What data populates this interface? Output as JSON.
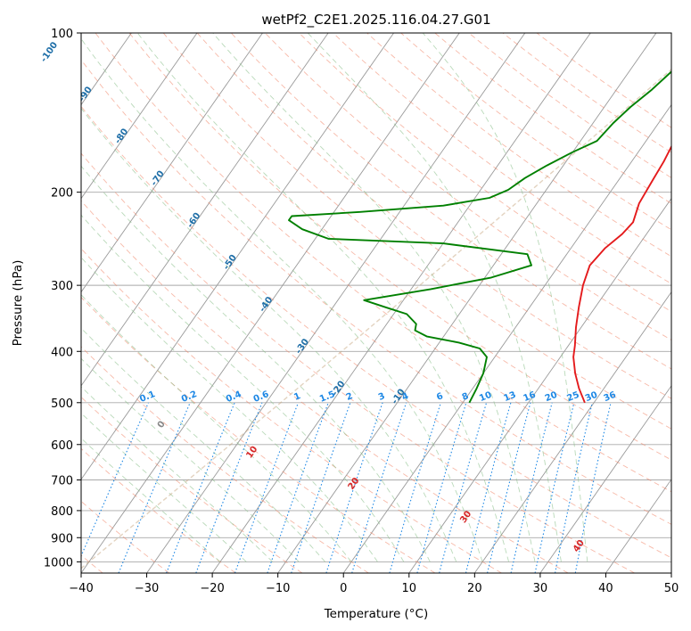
{
  "chart_data": {
    "type": "line",
    "diagram": "skew-t log-p",
    "title": "wetPf2_C2E1.2025.116.04.27.G01",
    "xlabel": "Temperature (°C)",
    "ylabel": "Pressure (hPa)",
    "xlim": [
      -40,
      50
    ],
    "ylim": [
      1050,
      100
    ],
    "y_scale": "log",
    "grid": true,
    "x_ticks": [
      "−40",
      "−30",
      "−20",
      "−10",
      "0",
      "10",
      "20",
      "30",
      "40",
      "50"
    ],
    "x_tick_values": [
      -40,
      -30,
      -20,
      -10,
      0,
      10,
      20,
      30,
      40,
      50
    ],
    "y_ticks": [
      "1000",
      "900",
      "800",
      "700",
      "600",
      "500",
      "400",
      "300",
      "200",
      "100"
    ],
    "y_tick_values": [
      1000,
      900,
      800,
      700,
      600,
      500,
      400,
      300,
      200,
      100
    ],
    "isotherm_labels": [
      "-100",
      "-90",
      "-80",
      "-70",
      "-60",
      "-50",
      "-40",
      "-30",
      "-20",
      "-10"
    ],
    "isotherm_label_values": [
      -100,
      -90,
      -80,
      -70,
      -60,
      -50,
      -40,
      -30,
      -20,
      -10
    ],
    "dry_adiabat_labels": [
      "0",
      "10",
      "20",
      "30",
      "40"
    ],
    "dry_adiabat_label_values": [
      0,
      10,
      20,
      30,
      40
    ],
    "mixing_ratio_labels": [
      "0.1",
      "0.2",
      "0.4",
      "0.6",
      "1",
      "1.5",
      "2",
      "3",
      "4",
      "6",
      "8",
      "10",
      "13",
      "16",
      "20",
      "25",
      "30",
      "36"
    ],
    "mixing_ratio_values": [
      0.1,
      0.2,
      0.4,
      0.6,
      1,
      1.5,
      2,
      3,
      4,
      6,
      8,
      10,
      13,
      16,
      20,
      25,
      30,
      36
    ],
    "series": [
      {
        "role": "temperature",
        "color": "#e41a1c",
        "points": [
          [
            500,
            18.6
          ],
          [
            470,
            16.2
          ],
          [
            440,
            14.0
          ],
          [
            410,
            12.0
          ],
          [
            390,
            11.0
          ],
          [
            360,
            9.2
          ],
          [
            330,
            7.5
          ],
          [
            300,
            5.8
          ],
          [
            275,
            4.7
          ],
          [
            255,
            5.2
          ],
          [
            240,
            6.3
          ],
          [
            228,
            6.7
          ],
          [
            210,
            5.6
          ],
          [
            190,
            5.2
          ],
          [
            175,
            4.9
          ],
          [
            160,
            4.3
          ],
          [
            145,
            3.2
          ],
          [
            133,
            1.2
          ],
          [
            122,
            0.6
          ],
          [
            112,
            1.4
          ],
          [
            104,
            3.0
          ],
          [
            100,
            4.2
          ]
        ]
      },
      {
        "role": "dewpoint",
        "color": "#008000",
        "points": [
          [
            500,
            1.0
          ],
          [
            470,
            0.6
          ],
          [
            440,
            0.0
          ],
          [
            410,
            -1.2
          ],
          [
            395,
            -3.2
          ],
          [
            385,
            -7.0
          ],
          [
            375,
            -12.5
          ],
          [
            365,
            -15.0
          ],
          [
            355,
            -15.5
          ],
          [
            340,
            -18.0
          ],
          [
            330,
            -22.0
          ],
          [
            320,
            -26.0
          ],
          [
            305,
            -17.0
          ],
          [
            290,
            -9.0
          ],
          [
            275,
            -4.2
          ],
          [
            262,
            -6.0
          ],
          [
            250,
            -20.0
          ],
          [
            245,
            -38.0
          ],
          [
            235,
            -43.0
          ],
          [
            226,
            -46.0
          ],
          [
            222,
            -46.0
          ],
          [
            218,
            -36.0
          ],
          [
            212,
            -24.0
          ],
          [
            205,
            -17.8
          ],
          [
            198,
            -15.8
          ],
          [
            188,
            -14.5
          ],
          [
            178,
            -12.5
          ],
          [
            168,
            -10.0
          ],
          [
            160,
            -7.5
          ],
          [
            148,
            -6.9
          ],
          [
            138,
            -6.0
          ],
          [
            128,
            -4.6
          ],
          [
            118,
            -3.5
          ],
          [
            110,
            -2.9
          ],
          [
            104,
            -2.6
          ],
          [
            100,
            -2.5
          ]
        ]
      }
    ],
    "colors": {
      "temperature": "#e41a1c",
      "dewpoint": "#008000",
      "isotherm": "#9a9a9a",
      "isobar": "#a9a9a9",
      "dry_adiabat": "#f08060",
      "moist_adiabat": "#8ac08a",
      "mixing_ratio": "#1e88e5",
      "isotherm_label": "#1f6fa8",
      "dry_adiabat_label": "#d62728",
      "reference_curve": "#c8a882"
    }
  }
}
